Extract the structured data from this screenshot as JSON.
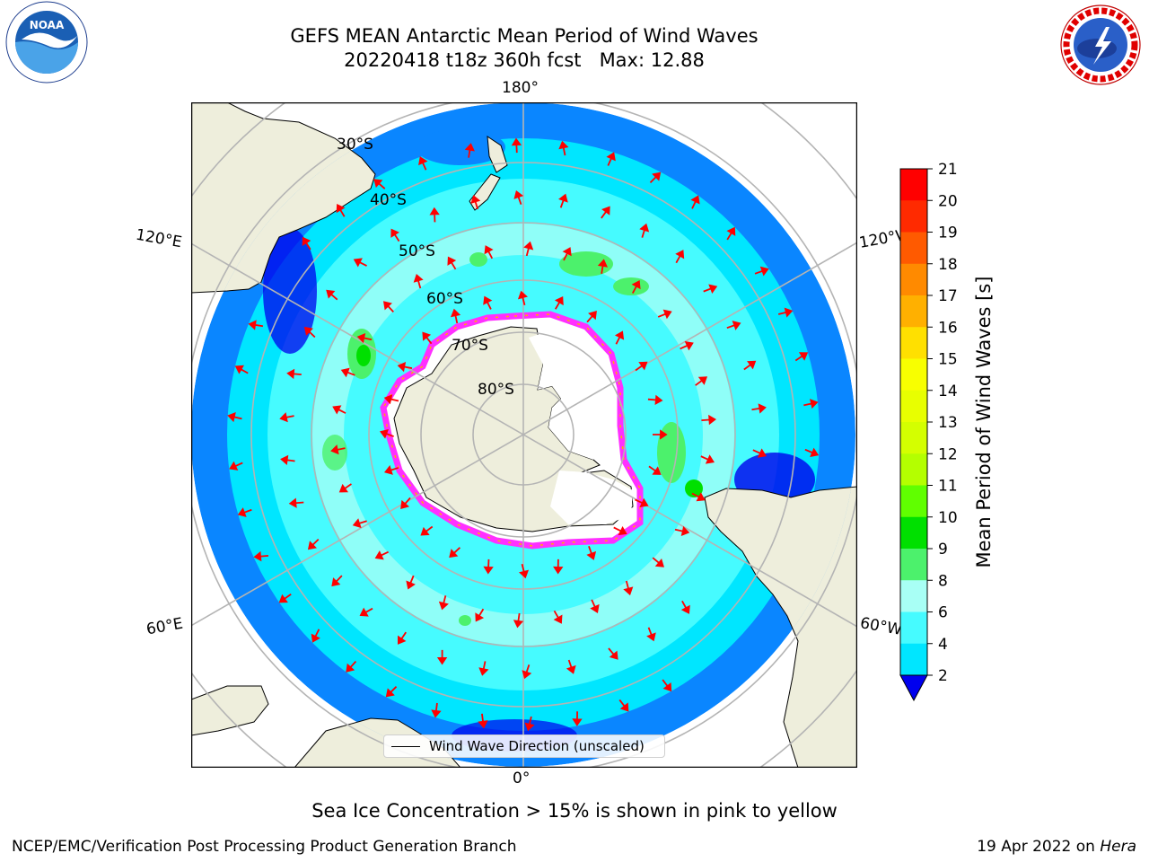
{
  "title": {
    "line1": "GEFS MEAN Antarctic Mean Period of Wind Waves",
    "line2": "20220418 t18z 360h fcst   Max: 12.88"
  },
  "map": {
    "projection": "south-polar-stereographic",
    "longitude_labels": {
      "top": "180°",
      "upper_left": "120°E",
      "upper_right": "120°W",
      "lower_left": "60°E",
      "lower_right": "60°W",
      "bottom": "0°"
    },
    "latitude_labels": [
      "30°S",
      "40°S",
      "50°S",
      "60°S",
      "70°S",
      "80°S"
    ],
    "colors": {
      "land": "#eeeedc",
      "ocean_4_6": "#00e6ff",
      "ocean_6_8": "#46fbff",
      "ocean_8_9": "#a8fff5",
      "ocean_2_4": "#0a86ff",
      "ocean_lt2": "#0000ee",
      "ocean_9_10": "#4cf16c",
      "ocean_10_11": "#00e000",
      "sea_ice": "#ffffff",
      "ice_edge_pink": "#ff30ff",
      "ice_edge_yellow": "#ffb000",
      "arrow": "#ff0000",
      "graticule": "#b4b4b4"
    },
    "arrow_glyph": "arrow-icon"
  },
  "legend": {
    "label": "Wind Wave Direction (unscaled)"
  },
  "colorbar": {
    "label": "Mean Period of Wind Waves [s]",
    "ticks": [
      "21",
      "20",
      "19",
      "18",
      "17",
      "16",
      "15",
      "14",
      "13",
      "12",
      "11",
      "10",
      "9",
      "8",
      "6",
      "4",
      "2"
    ],
    "colors": [
      "#ff0000",
      "#ff2a00",
      "#ff5a00",
      "#ff8a00",
      "#ffb000",
      "#ffe000",
      "#f8ff00",
      "#e8ff00",
      "#d4ff00",
      "#b4ff00",
      "#60ff00",
      "#00e000",
      "#4cf16c",
      "#a8fff5",
      "#46fbff",
      "#00e6ff",
      "#0a86ff",
      "#0000ee"
    ]
  },
  "caption": "Sea Ice Concentration > 15% is shown in pink to yellow",
  "footer": {
    "left": "NCEP/EMC/Verification Post Processing Product Generation Branch",
    "right_date": "19 Apr 2022 on",
    "right_host": "Hera"
  },
  "logos": {
    "noaa_text": "NOAA",
    "nws_text": "NATIONAL WEATHER SERVICE"
  }
}
